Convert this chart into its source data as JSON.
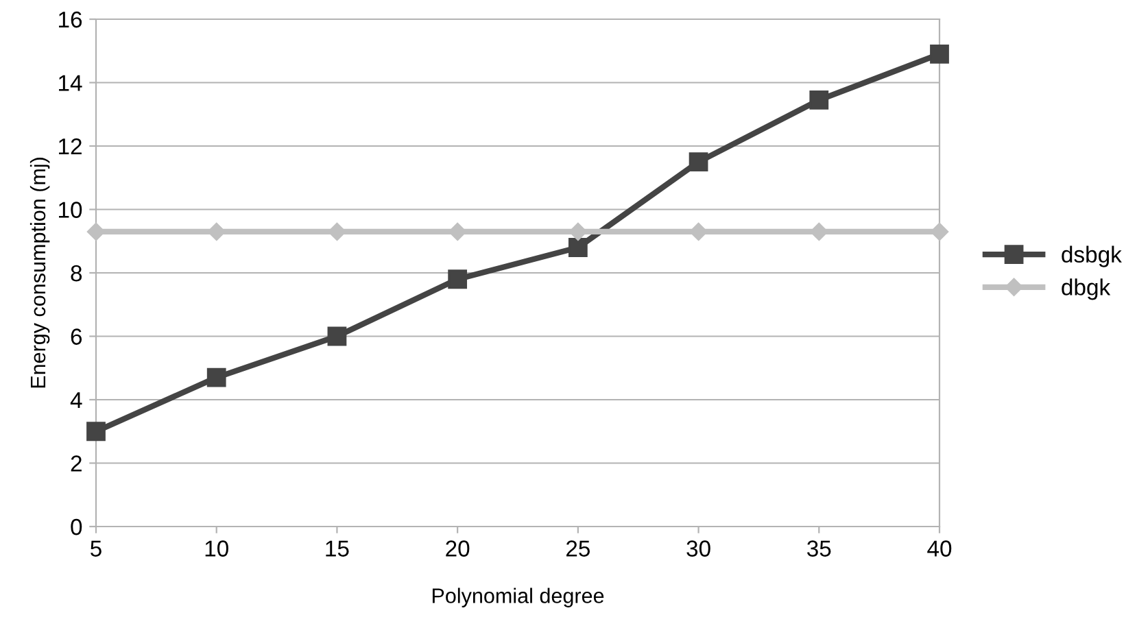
{
  "chart_data": {
    "type": "line",
    "xlabel": "Polynomial degree",
    "ylabel": "Energy consumption (mj)",
    "x": [
      5,
      10,
      15,
      20,
      25,
      30,
      35,
      40
    ],
    "series": [
      {
        "name": "dsbgk",
        "color": "#444444",
        "marker": "square",
        "values": [
          3.0,
          4.7,
          6.0,
          7.8,
          8.8,
          11.5,
          13.45,
          14.9
        ]
      },
      {
        "name": "dbgk",
        "color": "#c0c0c0",
        "marker": "diamond",
        "values": [
          9.3,
          9.3,
          9.3,
          9.3,
          9.3,
          9.3,
          9.3,
          9.3
        ]
      }
    ],
    "xlim": [
      5,
      40
    ],
    "xticks": [
      5,
      10,
      15,
      20,
      25,
      30,
      35,
      40
    ],
    "ylim": [
      0,
      16
    ],
    "yticks": [
      0,
      2,
      4,
      6,
      8,
      10,
      12,
      14,
      16
    ],
    "grid": "y",
    "legend": "right",
    "line_style": "solid"
  }
}
